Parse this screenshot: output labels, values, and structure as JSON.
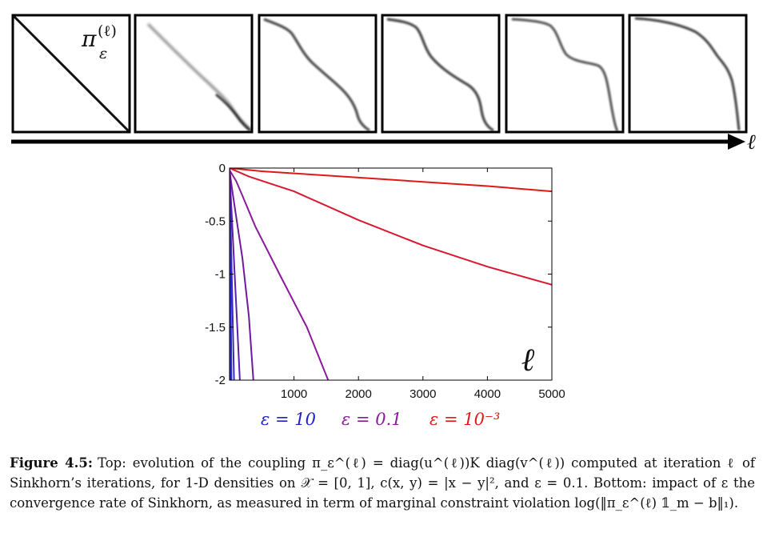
{
  "top_strip": {
    "pi_label": "π",
    "pi_sup": "(ℓ)",
    "pi_sub": "ε",
    "axis_label": "ℓ"
  },
  "legend": [
    {
      "text": "ε = 10",
      "color": "#2020c8"
    },
    {
      "text": "ε = 0.1",
      "color": "#8a1a9a"
    },
    {
      "text": "ε = 10⁻³",
      "color": "#e01818"
    }
  ],
  "chart_data": {
    "type": "line",
    "xlabel": "ℓ",
    "xlim": [
      0,
      5000
    ],
    "ylim": [
      -2,
      0
    ],
    "xticks": [
      "1000",
      "2000",
      "3000",
      "4000",
      "5000"
    ],
    "yticks": [
      "0",
      "-0.5",
      "-1",
      "-1.5",
      "-2"
    ],
    "series": [
      {
        "color": "#2020c8",
        "points": [
          [
            0,
            0
          ],
          [
            10,
            -2
          ]
        ]
      },
      {
        "color": "#2a2ad0",
        "points": [
          [
            0,
            0
          ],
          [
            30,
            -2
          ]
        ]
      },
      {
        "color": "#3b2ab8",
        "points": [
          [
            0,
            -0.02
          ],
          [
            70,
            -2
          ]
        ]
      },
      {
        "color": "#5a1fae",
        "points": [
          [
            0,
            -0.02
          ],
          [
            80,
            -1.0
          ],
          [
            120,
            -1.5
          ],
          [
            160,
            -2
          ]
        ]
      },
      {
        "color": "#6e1a9e",
        "points": [
          [
            0,
            -0.02
          ],
          [
            40,
            -0.2
          ],
          [
            100,
            -0.45
          ],
          [
            200,
            -0.85
          ],
          [
            300,
            -1.4
          ],
          [
            370,
            -2
          ]
        ]
      },
      {
        "color": "#8a1a9a",
        "points": [
          [
            0,
            -0.02
          ],
          [
            100,
            -0.12
          ],
          [
            200,
            -0.26
          ],
          [
            400,
            -0.55
          ],
          [
            800,
            -1.03
          ],
          [
            1200,
            -1.5
          ],
          [
            1530,
            -2
          ]
        ]
      },
      {
        "color": "#d81830",
        "points": [
          [
            0,
            0
          ],
          [
            300,
            -0.08
          ],
          [
            700,
            -0.16
          ],
          [
            1000,
            -0.22
          ],
          [
            2000,
            -0.49
          ],
          [
            3000,
            -0.73
          ],
          [
            4000,
            -0.93
          ],
          [
            5000,
            -1.1
          ]
        ]
      },
      {
        "color": "#e01818",
        "points": [
          [
            0,
            0
          ],
          [
            500,
            -0.03
          ],
          [
            1000,
            -0.05
          ],
          [
            2000,
            -0.09
          ],
          [
            3000,
            -0.13
          ],
          [
            4000,
            -0.17
          ],
          [
            5000,
            -0.22
          ]
        ]
      }
    ]
  },
  "caption": {
    "label": "Figure 4.5:",
    "text": "Top: evolution of the coupling π_ε^(ℓ) = diag(u^(ℓ))K diag(v^(ℓ)) computed at iteration ℓ of Sinkhorn’s iterations, for 1-D densities on 𝒳 = [0, 1], c(x, y) = |x − y|², and ε = 0.1. Bottom: impact of ε the convergence rate of Sinkhorn, as measured in term of marginal constraint violation log(‖π_ε^(ℓ) 𝟙_m − b‖₁)."
  }
}
